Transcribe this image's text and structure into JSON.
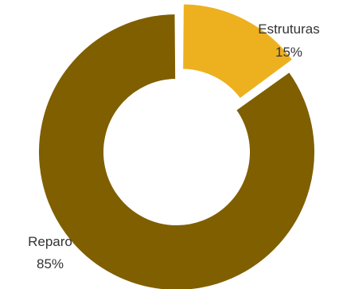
{
  "chart_data": {
    "type": "pie",
    "donut": true,
    "title": "",
    "categories": [
      "Estruturas",
      "Reparo"
    ],
    "values": [
      15,
      85
    ],
    "value_labels": [
      "15%",
      "85%"
    ],
    "colors": [
      "#EDB120",
      "#7F5F00"
    ],
    "legend": "none"
  }
}
